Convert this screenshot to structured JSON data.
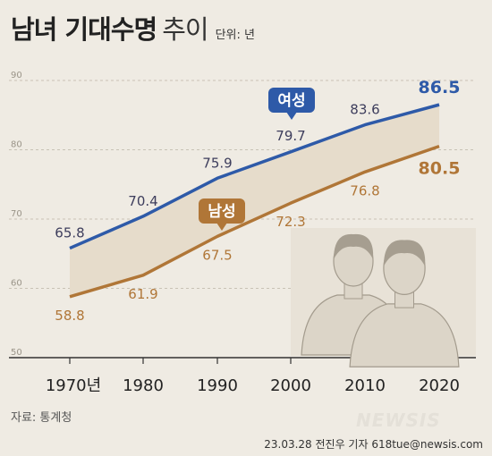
{
  "title": {
    "main": "남녀 기대수명",
    "light": "추이",
    "unit": "단위: 년"
  },
  "source": "자료: 통계청",
  "credit": "23.03.28 전진우 기자 618tue@newsis.com",
  "watermark": "NEWSIS",
  "colors": {
    "female": "#2e5aa8",
    "male": "#b07637",
    "band": "#e6dccb",
    "grid": "#c8c2b5",
    "background": "#efebe3"
  },
  "chart_data": {
    "type": "line",
    "categories": [
      "1970년",
      "1980",
      "1990",
      "2000",
      "2010",
      "2020"
    ],
    "ylim": [
      50,
      90
    ],
    "yticks": [
      "50",
      "60",
      "70",
      "80",
      "90"
    ],
    "grid": true,
    "series": [
      {
        "name": "여성",
        "values": [
          65.8,
          70.4,
          75.9,
          79.7,
          83.6,
          86.5
        ],
        "labels": [
          "65.8",
          "70.4",
          "75.9",
          "79.7",
          "83.6",
          "86.5"
        ]
      },
      {
        "name": "남성",
        "values": [
          58.8,
          61.9,
          67.5,
          72.3,
          76.8,
          80.5
        ],
        "labels": [
          "58.8",
          "61.9",
          "67.5",
          "72.3",
          "76.8",
          "80.5"
        ]
      }
    ],
    "legend_placement": "inline callouts on lines"
  }
}
